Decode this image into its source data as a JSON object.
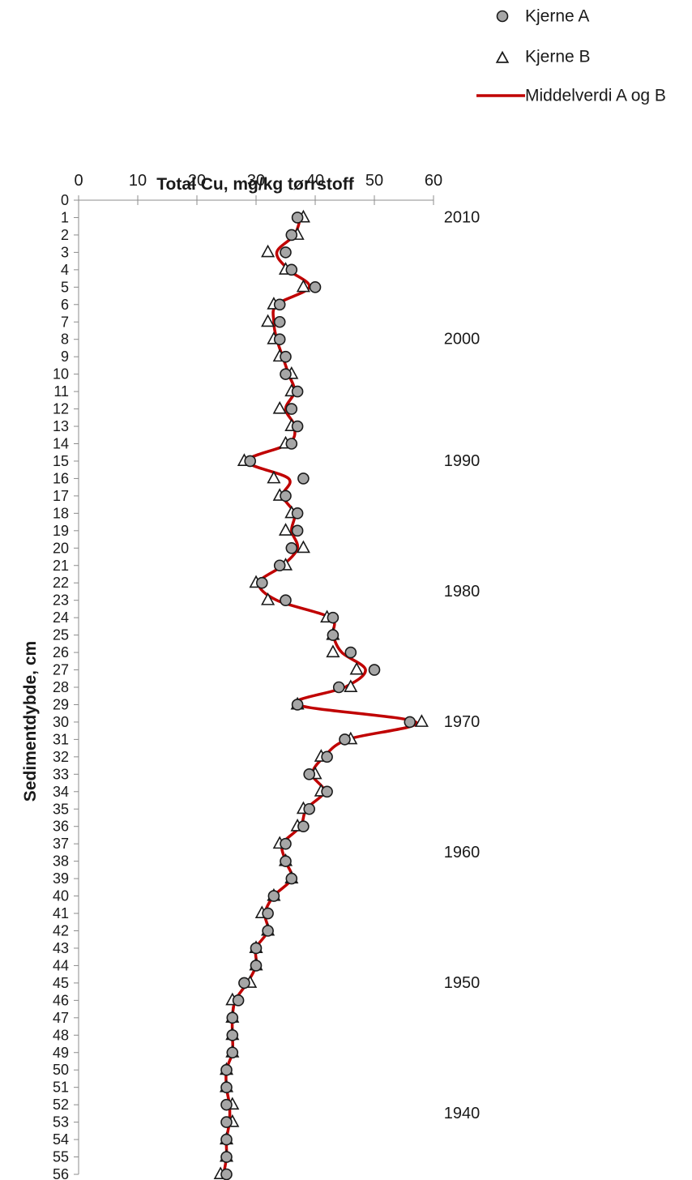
{
  "chart_data": {
    "type": "scatter",
    "title": "Total Cu, mg/kg tørrstoff",
    "xlabel": "Total Cu, mg/kg tørrstoff",
    "ylabel": "Sedimentdybde, cm",
    "xlim": [
      0,
      60
    ],
    "ylim": [
      0,
      56
    ],
    "y_inverted": true,
    "x_axis_position": "top",
    "x_ticks": [
      0,
      10,
      20,
      30,
      40,
      50,
      60
    ],
    "y_ticks": [
      0,
      1,
      2,
      3,
      4,
      5,
      6,
      7,
      8,
      9,
      10,
      11,
      12,
      13,
      14,
      15,
      16,
      17,
      18,
      19,
      20,
      21,
      22,
      23,
      24,
      25,
      26,
      27,
      28,
      29,
      30,
      31,
      32,
      33,
      34,
      35,
      36,
      37,
      38,
      39,
      40,
      41,
      42,
      43,
      44,
      45,
      46,
      47,
      48,
      49,
      50,
      51,
      52,
      53,
      54,
      55,
      56
    ],
    "grid": false,
    "legend": "top-right",
    "depth": [
      1,
      2,
      3,
      4,
      5,
      6,
      7,
      8,
      9,
      10,
      11,
      12,
      13,
      14,
      15,
      16,
      17,
      18,
      19,
      20,
      21,
      22,
      23,
      24,
      25,
      26,
      27,
      28,
      29,
      30,
      31,
      32,
      33,
      34,
      35,
      36,
      37,
      38,
      39,
      40,
      41,
      42,
      43,
      44,
      45,
      46,
      47,
      48,
      49,
      50,
      51,
      52,
      53,
      54,
      55,
      56
    ],
    "series": [
      {
        "name": "Kjerne A",
        "marker": "circle",
        "color": "#a6a6a6",
        "values": [
          37,
          36,
          35,
          36,
          40,
          34,
          34,
          34,
          35,
          35,
          37,
          36,
          37,
          36,
          29,
          38,
          35,
          37,
          37,
          36,
          34,
          31,
          35,
          43,
          43,
          46,
          50,
          44,
          37,
          56,
          45,
          42,
          39,
          42,
          39,
          38,
          35,
          35,
          36,
          33,
          32,
          32,
          30,
          30,
          28,
          27,
          26,
          26,
          26,
          25,
          25,
          25,
          25,
          25,
          25,
          25
        ]
      },
      {
        "name": "Kjerne B",
        "marker": "triangle",
        "color": "#ffffff",
        "values": [
          38,
          37,
          32,
          35,
          38,
          33,
          32,
          33,
          34,
          36,
          36,
          34,
          36,
          35,
          28,
          33,
          34,
          36,
          35,
          38,
          35,
          30,
          32,
          42,
          43,
          43,
          47,
          46,
          37,
          58,
          46,
          41,
          40,
          41,
          38,
          37,
          34,
          35,
          36,
          33,
          31,
          32,
          30,
          30,
          29,
          26,
          26,
          26,
          26,
          25,
          25,
          26,
          26,
          25,
          25,
          24
        ]
      },
      {
        "name": "Middelverdi A og B",
        "marker": "line",
        "color": "#c00000",
        "values": [
          37.5,
          36.5,
          33.5,
          35.5,
          39,
          33.5,
          33,
          33.5,
          34.5,
          35.5,
          36.5,
          35,
          36.5,
          35.5,
          28.5,
          35.5,
          34.5,
          36.5,
          36,
          37,
          34.5,
          30.5,
          33.5,
          42.5,
          43,
          44.5,
          48.5,
          45,
          37,
          57,
          45.5,
          41.5,
          39.5,
          41.5,
          38.5,
          37.5,
          34.5,
          35,
          36,
          33,
          31.5,
          32,
          30,
          30,
          28.5,
          26.5,
          26,
          26,
          26,
          25,
          25,
          25.5,
          25.5,
          25,
          25,
          24.5
        ]
      }
    ],
    "annotations": [
      {
        "text": "2010",
        "depth": 1
      },
      {
        "text": "2000",
        "depth": 8
      },
      {
        "text": "1990",
        "depth": 15
      },
      {
        "text": "1980",
        "depth": 22.5
      },
      {
        "text": "1970",
        "depth": 30
      },
      {
        "text": "1960",
        "depth": 37.5
      },
      {
        "text": "1950",
        "depth": 45
      },
      {
        "text": "1940",
        "depth": 52.5
      }
    ]
  }
}
